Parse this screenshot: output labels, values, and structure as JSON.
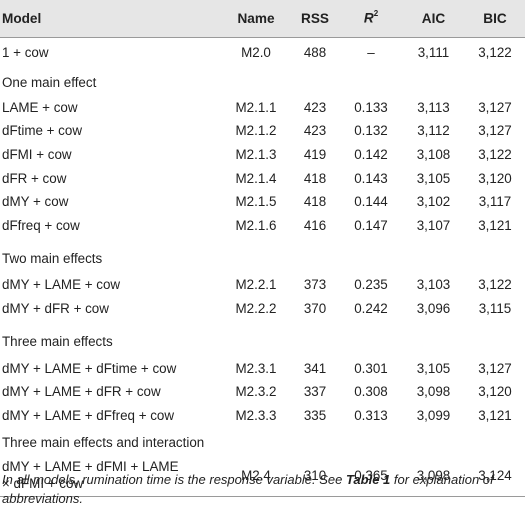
{
  "header": {
    "model": "Model",
    "name": "Name",
    "rss": "RSS",
    "r2_letter": "R",
    "r2_sup": "2",
    "aic": "AIC",
    "bic": "BIC"
  },
  "baseline": {
    "model": "1 + cow",
    "name": "M2.0",
    "rss": "488",
    "r2": "–",
    "aic": "3,111",
    "bic": "3,122"
  },
  "sections": [
    {
      "title": "One main effect",
      "rows": [
        {
          "model": "LAME + cow",
          "name": "M2.1.1",
          "rss": "423",
          "r2": "0.133",
          "aic": "3,113",
          "bic": "3,127"
        },
        {
          "model": "dFtime + cow",
          "name": "M2.1.2",
          "rss": "423",
          "r2": "0.132",
          "aic": "3,112",
          "bic": "3,127"
        },
        {
          "model": "dFMI + cow",
          "name": "M2.1.3",
          "rss": "419",
          "r2": "0.142",
          "aic": "3,108",
          "bic": "3,122"
        },
        {
          "model": "dFR + cow",
          "name": "M2.1.4",
          "rss": "418",
          "r2": "0.143",
          "aic": "3,105",
          "bic": "3,120"
        },
        {
          "model": "dMY + cow",
          "name": "M2.1.5",
          "rss": "418",
          "r2": "0.144",
          "aic": "3,102",
          "bic": "3,117"
        },
        {
          "model": "dFfreq + cow",
          "name": "M2.1.6",
          "rss": "416",
          "r2": "0.147",
          "aic": "3,107",
          "bic": "3,121"
        }
      ]
    },
    {
      "title": "Two main effects",
      "rows": [
        {
          "model": "dMY + LAME + cow",
          "name": "M2.2.1",
          "rss": "373",
          "r2": "0.235",
          "aic": "3,103",
          "bic": "3,122"
        },
        {
          "model": "dMY + dFR + cow",
          "name": "M2.2.2",
          "rss": "370",
          "r2": "0.242",
          "aic": "3,096",
          "bic": "3,115"
        }
      ]
    },
    {
      "title": "Three main effects",
      "rows": [
        {
          "model": "dMY + LAME + dFtime + cow",
          "name": "M2.3.1",
          "rss": "341",
          "r2": "0.301",
          "aic": "3,105",
          "bic": "3,127"
        },
        {
          "model": "dMY + LAME + dFR + cow",
          "name": "M2.3.2",
          "rss": "337",
          "r2": "0.308",
          "aic": "3,098",
          "bic": "3,120"
        },
        {
          "model": "dMY + LAME + dFfreq + cow",
          "name": "M2.3.3",
          "rss": "335",
          "r2": "0.313",
          "aic": "3,099",
          "bic": "3,121"
        }
      ]
    },
    {
      "title": "Three main effects and interaction",
      "rows": [
        {
          "model_line1": "dMY + LAME + dFMI + LAME",
          "model_line2": "× dFMI + cow",
          "name": "M2.4",
          "rss": "310",
          "r2": "0.365",
          "aic": "3,098",
          "bic": "3,124"
        }
      ]
    }
  ],
  "footnote": {
    "part1": "In all models, rumination time is the response variable. See ",
    "bold": "Table 1",
    "part2": " for explanation of abbreviations."
  }
}
